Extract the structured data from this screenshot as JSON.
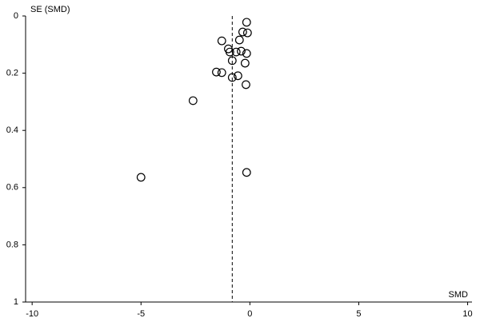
{
  "chart_data": {
    "type": "scatter",
    "y_label": "SE (SMD)",
    "x_label": "SMD",
    "x": [
      -0.15,
      -0.33,
      -0.11,
      -0.48,
      -1.29,
      -0.99,
      -0.92,
      -0.63,
      -0.4,
      -0.15,
      -0.81,
      -0.22,
      -1.54,
      -1.29,
      -0.81,
      -0.55,
      -0.18,
      -2.61,
      -0.15,
      -5.0
    ],
    "y": [
      0.022,
      0.056,
      0.059,
      0.084,
      0.087,
      0.115,
      0.126,
      0.126,
      0.123,
      0.131,
      0.156,
      0.165,
      0.196,
      0.198,
      0.215,
      0.209,
      0.24,
      0.296,
      0.547,
      0.564
    ],
    "reference_x": -0.81,
    "xlim": [
      -10.3,
      10.2
    ],
    "xticks": [
      -10,
      -5,
      0,
      5,
      10
    ],
    "ylim": [
      0,
      1
    ],
    "yticks": [
      0,
      0.2,
      0.4,
      0.6,
      0.8,
      1
    ],
    "y_inverted": true,
    "color": "#000000"
  }
}
